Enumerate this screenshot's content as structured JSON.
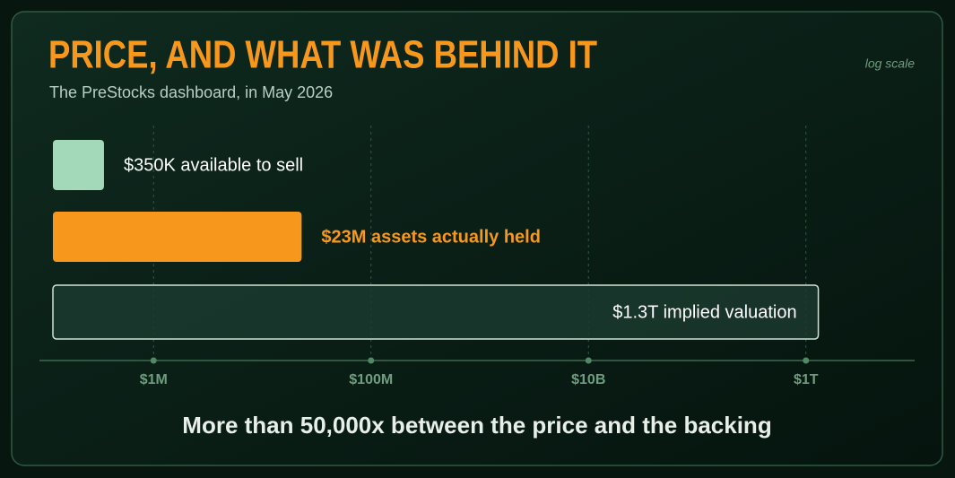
{
  "chart_data": {
    "type": "bar",
    "orientation": "horizontal",
    "title": "PRICE, AND WHAT WAS BEHIND IT",
    "subtitle": "The PreStocks dashboard, in May 2026",
    "scale_note": "log scale",
    "footnote": "More than 50,000x between the price and the backing",
    "values": [
      350000,
      23000000,
      1300000000000
    ],
    "value_labels": [
      "$350K available to sell",
      "$23M assets actually held",
      "$1.3T implied valuation"
    ],
    "colors": [
      "#a3d9b8",
      "#f7981d",
      "#1b3a2f"
    ],
    "label_colors": [
      "#ffffff",
      "#f7981d",
      "#ffffff"
    ],
    "highlight": 1,
    "log_scale": true,
    "grid": true,
    "xlim": [
      100000,
      10000000000000
    ],
    "xticks": [
      {
        "value": 1000000,
        "label": "$1M"
      },
      {
        "value": 100000000,
        "label": "$100M"
      },
      {
        "value": 10000000000,
        "label": "$10B"
      },
      {
        "value": 1000000000000,
        "label": "$1T"
      }
    ]
  }
}
